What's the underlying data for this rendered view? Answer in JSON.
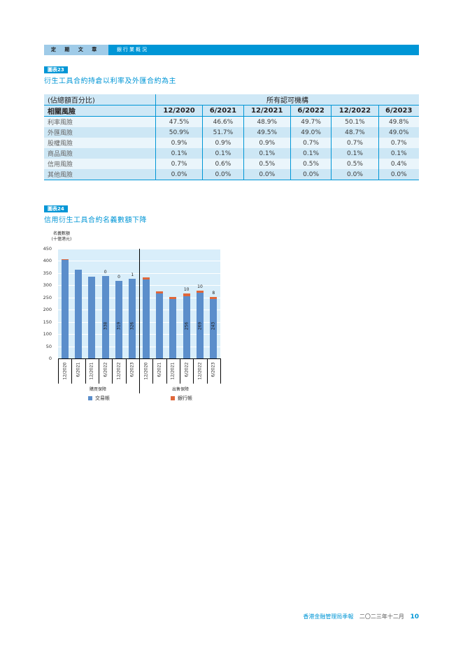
{
  "header": {
    "section": "定 期 文 章",
    "topic": "銀行業概況"
  },
  "chart23": {
    "tag": "圖表23",
    "title": "衍生工具合約持倉以利率及外匯合約為主",
    "unit_label": "(佔總額百分比)",
    "group_label": "所有認可機構",
    "row_header": "相關風險",
    "columns": [
      "12/2020",
      "6/2021",
      "12/2021",
      "6/2022",
      "12/2022",
      "6/2023"
    ],
    "rows": [
      {
        "label": "利率風險",
        "values": [
          "47.5%",
          "46.6%",
          "48.9%",
          "49.7%",
          "50.1%",
          "49.8%"
        ]
      },
      {
        "label": "外匯風險",
        "values": [
          "50.9%",
          "51.7%",
          "49.5%",
          "49.0%",
          "48.7%",
          "49.0%"
        ]
      },
      {
        "label": "股權風險",
        "values": [
          "0.9%",
          "0.9%",
          "0.9%",
          "0.7%",
          "0.7%",
          "0.7%"
        ]
      },
      {
        "label": "商品風險",
        "values": [
          "0.1%",
          "0.1%",
          "0.1%",
          "0.1%",
          "0.1%",
          "0.1%"
        ]
      },
      {
        "label": "信用風險",
        "values": [
          "0.7%",
          "0.6%",
          "0.5%",
          "0.5%",
          "0.5%",
          "0.4%"
        ]
      },
      {
        "label": "其他風險",
        "values": [
          "0.0%",
          "0.0%",
          "0.0%",
          "0.0%",
          "0.0%",
          "0.0%"
        ]
      }
    ]
  },
  "chart24": {
    "tag": "圖表24",
    "title": "信用衍生工具合約名義數額下降",
    "y_label_1": "名義數額",
    "y_label_2": "(十億港元)",
    "y_ticks": [
      "0",
      "50",
      "100",
      "150",
      "200",
      "250",
      "300",
      "350",
      "400",
      "450"
    ],
    "groups": [
      "購買保障",
      "出售保障"
    ],
    "legend": [
      {
        "name": "交易帳",
        "color": "#5b8ecb"
      },
      {
        "name": "銀行帳",
        "color": "#e0673a"
      }
    ]
  },
  "chart_data": {
    "type": "bar",
    "stacked": true,
    "title": "信用衍生工具合約名義數額下降",
    "ylabel": "名義數額 (十億港元)",
    "ylim": [
      0,
      450
    ],
    "groups": [
      {
        "name": "購買保障",
        "categories": [
          "12/2020",
          "6/2021",
          "12/2021",
          "6/2022",
          "12/2022",
          "6/2023"
        ]
      },
      {
        "name": "出售保障",
        "categories": [
          "12/2020",
          "6/2021",
          "12/2021",
          "6/2022",
          "12/2022",
          "6/2023"
        ]
      }
    ],
    "categories": [
      "12/2020",
      "6/2021",
      "12/2021",
      "6/2022",
      "12/2022",
      "6/2023",
      "12/2020",
      "6/2021",
      "12/2021",
      "6/2022",
      "12/2022",
      "6/2023"
    ],
    "series": [
      {
        "name": "交易帳",
        "color": "#5b8ecb",
        "values": [
          405,
          364,
          335,
          338,
          319,
          326,
          324,
          266,
          244,
          256,
          269,
          243
        ]
      },
      {
        "name": "銀行帳",
        "color": "#e0673a",
        "values": [
          1,
          0,
          0,
          0,
          0,
          1,
          8,
          9,
          8,
          10,
          10,
          8
        ]
      }
    ],
    "data_labels": {
      "inside": [
        "",
        "",
        "",
        "338",
        "319",
        "326",
        "",
        "",
        "",
        "256",
        "269",
        "243"
      ],
      "top": [
        "",
        "",
        "",
        "0",
        "0",
        "1",
        "",
        "",
        "",
        "10",
        "10",
        "8"
      ]
    },
    "legend_position": "bottom",
    "grid": true
  },
  "footer": {
    "publication": "香港金融管理局季報",
    "date": "二〇二三年十二月",
    "page": "10"
  }
}
